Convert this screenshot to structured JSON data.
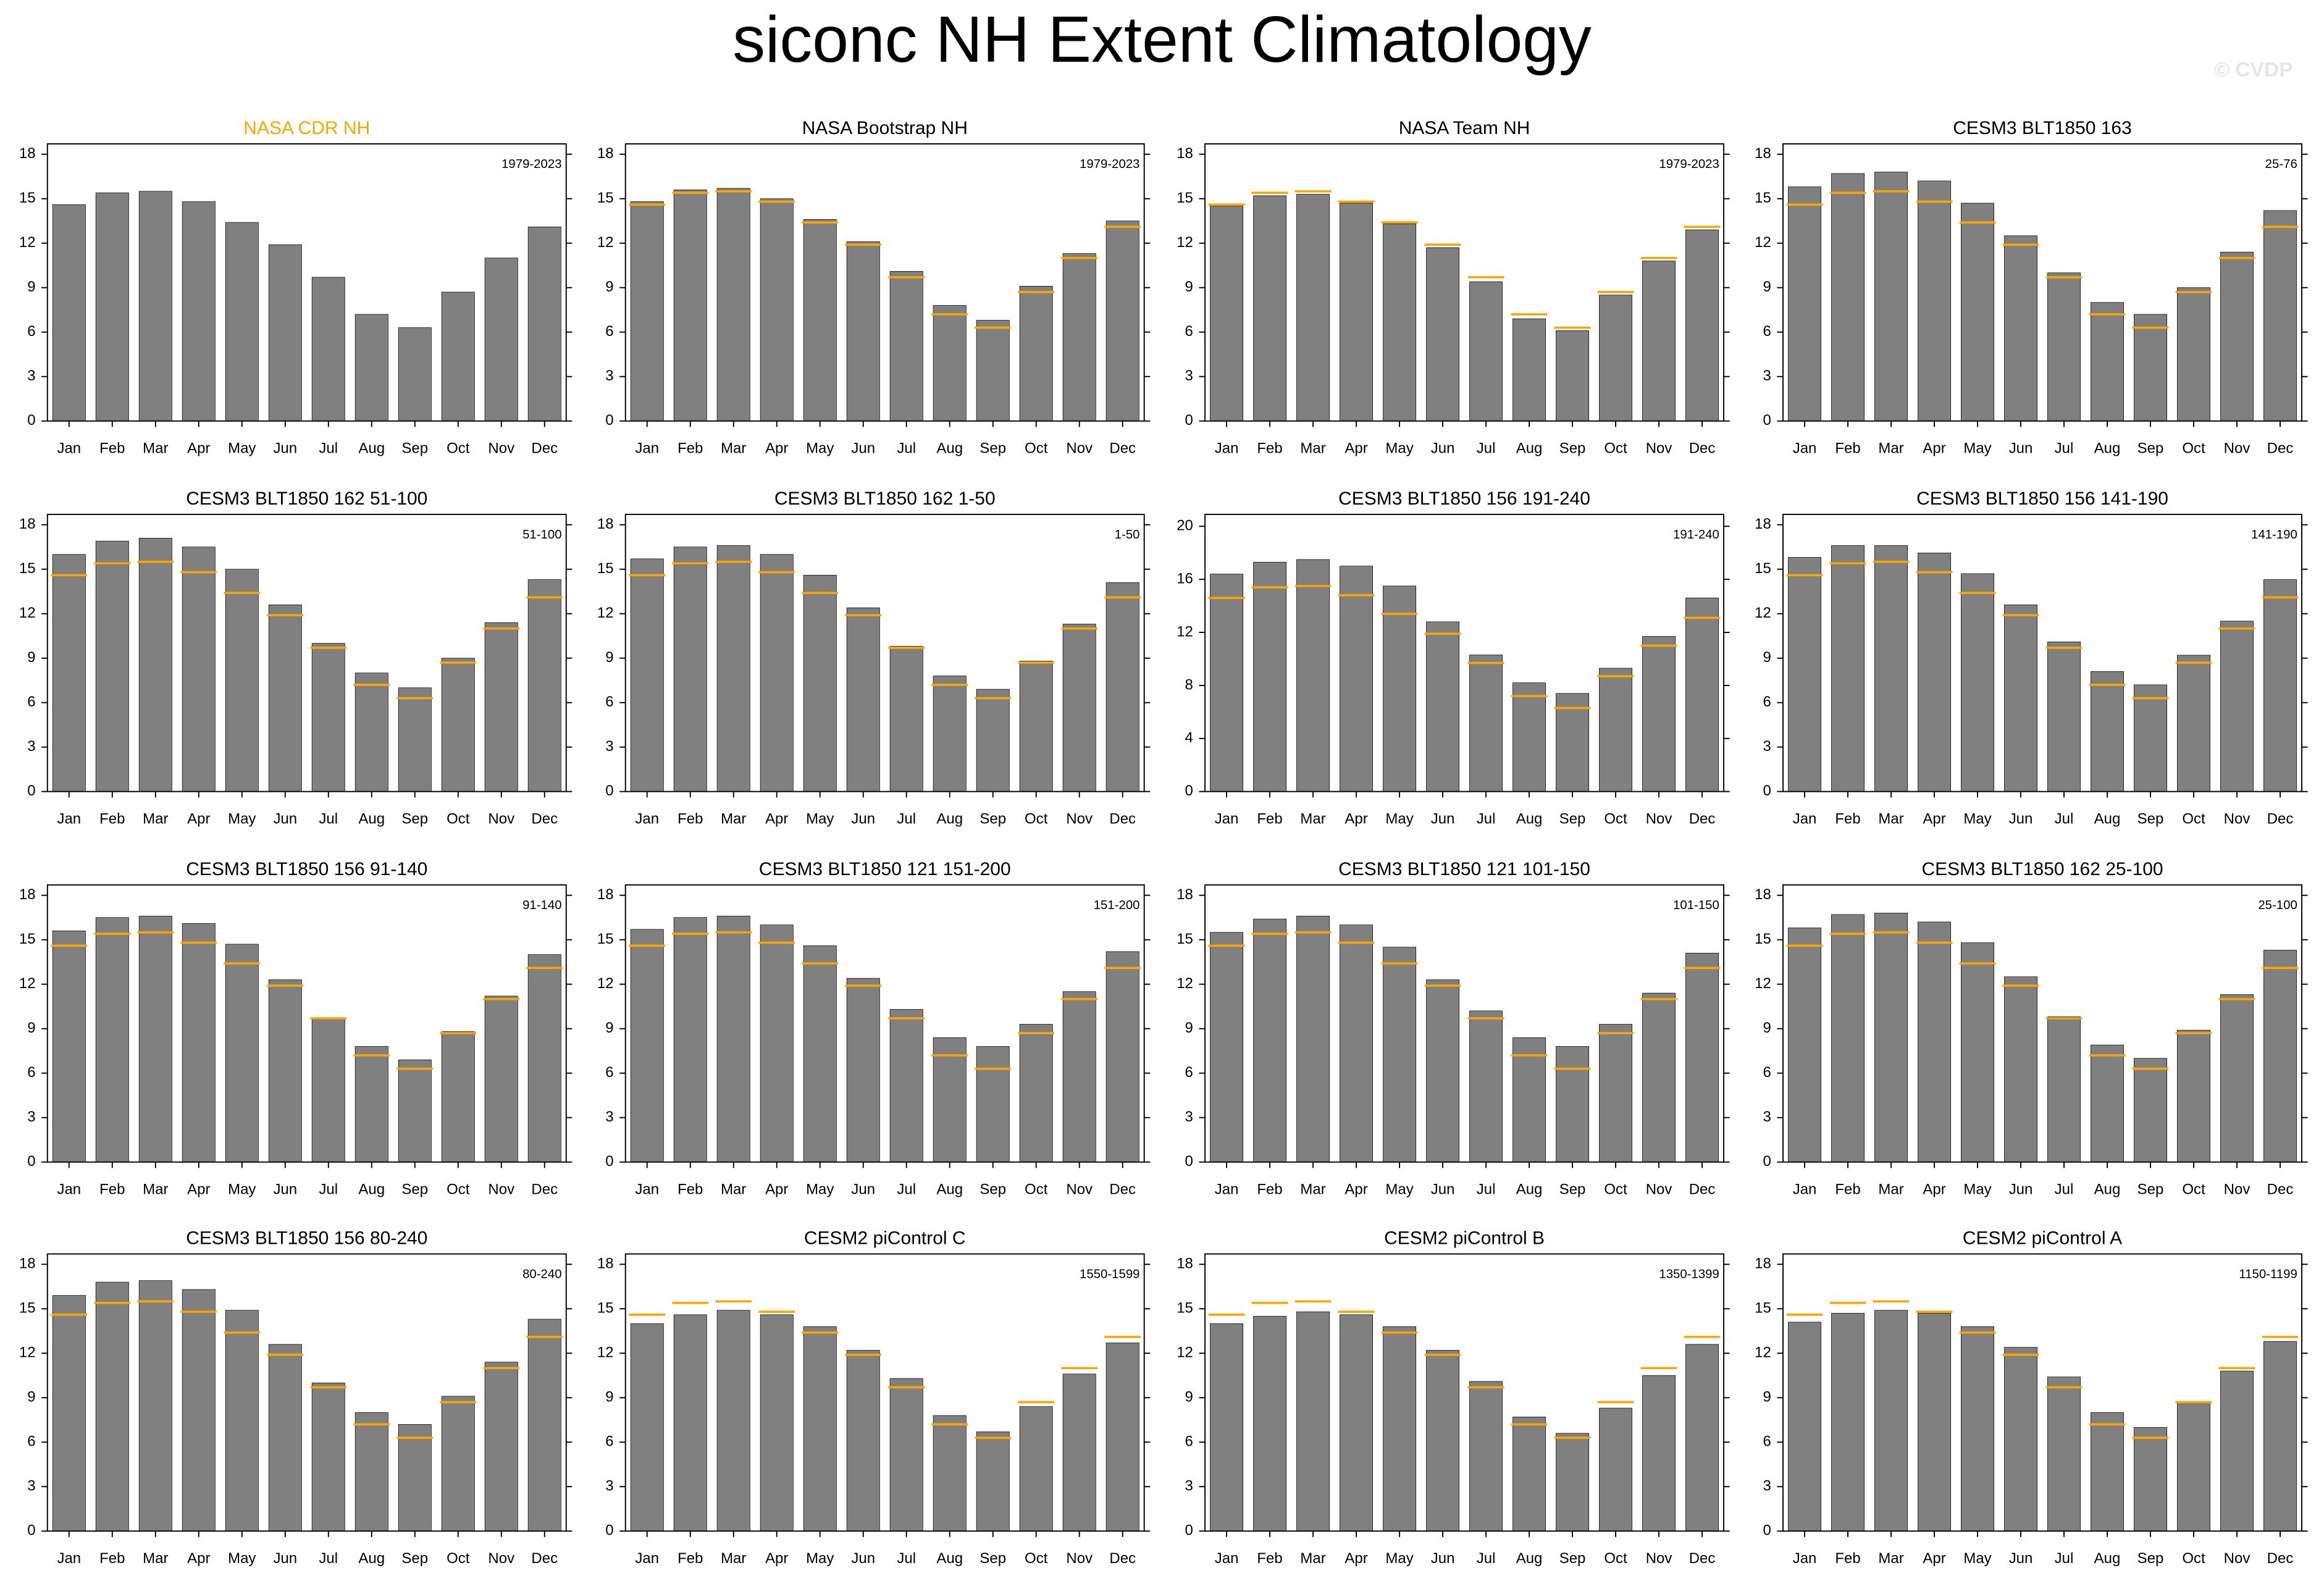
{
  "title": "siconc NH Extent Climatology",
  "watermark": "© CVDP",
  "chart_data": [
    {
      "type": "bar",
      "title": "NASA CDR NH",
      "title_color": "#ffa500",
      "annotation": "1979-2023",
      "categories": [
        "Jan",
        "Feb",
        "Mar",
        "Apr",
        "May",
        "Jun",
        "Jul",
        "Aug",
        "Sep",
        "Oct",
        "Nov",
        "Dec"
      ],
      "values": [
        14.6,
        15.4,
        15.5,
        14.8,
        13.4,
        11.9,
        9.7,
        7.2,
        6.3,
        8.7,
        11.0,
        13.1
      ],
      "color": "#808080",
      "ylim": [
        0,
        18.7
      ],
      "yticks": [
        0,
        3,
        6,
        9,
        12,
        15,
        18
      ]
    },
    {
      "type": "bar",
      "title": "NASA Bootstrap NH",
      "annotation": "1979-2023",
      "categories": [
        "Jan",
        "Feb",
        "Mar",
        "Apr",
        "May",
        "Jun",
        "Jul",
        "Aug",
        "Sep",
        "Oct",
        "Nov",
        "Dec"
      ],
      "values": [
        14.8,
        15.6,
        15.7,
        15.0,
        13.6,
        12.1,
        10.1,
        7.8,
        6.8,
        9.1,
        11.3,
        13.5
      ],
      "ref_values": [
        14.6,
        15.4,
        15.5,
        14.8,
        13.4,
        11.9,
        9.7,
        7.2,
        6.3,
        8.7,
        11.0,
        13.1
      ],
      "color": "#808080",
      "ref_color": "#ffa500",
      "ylim": [
        0,
        18.7
      ],
      "yticks": [
        0,
        3,
        6,
        9,
        12,
        15,
        18
      ]
    },
    {
      "type": "bar",
      "title": "NASA Team NH",
      "annotation": "1979-2023",
      "categories": [
        "Jan",
        "Feb",
        "Mar",
        "Apr",
        "May",
        "Jun",
        "Jul",
        "Aug",
        "Sep",
        "Oct",
        "Nov",
        "Dec"
      ],
      "values": [
        14.5,
        15.2,
        15.3,
        14.7,
        13.3,
        11.7,
        9.4,
        6.9,
        6.1,
        8.5,
        10.8,
        12.9
      ],
      "ref_values": [
        14.6,
        15.4,
        15.5,
        14.8,
        13.4,
        11.9,
        9.7,
        7.2,
        6.3,
        8.7,
        11.0,
        13.1
      ],
      "color": "#808080",
      "ref_color": "#ffa500",
      "ylim": [
        0,
        18.7
      ],
      "yticks": [
        0,
        3,
        6,
        9,
        12,
        15,
        18
      ]
    },
    {
      "type": "bar",
      "title": "CESM3 BLT1850 163",
      "annotation": "25-76",
      "categories": [
        "Jan",
        "Feb",
        "Mar",
        "Apr",
        "May",
        "Jun",
        "Jul",
        "Aug",
        "Sep",
        "Oct",
        "Nov",
        "Dec"
      ],
      "values": [
        15.8,
        16.7,
        16.8,
        16.2,
        14.7,
        12.5,
        10.0,
        8.0,
        7.2,
        9.0,
        11.4,
        14.2
      ],
      "ref_values": [
        14.6,
        15.4,
        15.5,
        14.8,
        13.4,
        11.9,
        9.7,
        7.2,
        6.3,
        8.7,
        11.0,
        13.1
      ],
      "color": "#808080",
      "ref_color": "#ffa500",
      "ylim": [
        0,
        18.7
      ],
      "yticks": [
        0,
        3,
        6,
        9,
        12,
        15,
        18
      ]
    },
    {
      "type": "bar",
      "title": "CESM3 BLT1850 162 51-100",
      "annotation": "51-100",
      "categories": [
        "Jan",
        "Feb",
        "Mar",
        "Apr",
        "May",
        "Jun",
        "Jul",
        "Aug",
        "Sep",
        "Oct",
        "Nov",
        "Dec"
      ],
      "values": [
        16.0,
        16.9,
        17.1,
        16.5,
        15.0,
        12.6,
        10.0,
        8.0,
        7.0,
        9.0,
        11.4,
        14.3
      ],
      "ref_values": [
        14.6,
        15.4,
        15.5,
        14.8,
        13.4,
        11.9,
        9.7,
        7.2,
        6.3,
        8.7,
        11.0,
        13.1
      ],
      "color": "#808080",
      "ref_color": "#ffa500",
      "ylim": [
        0,
        18.7
      ],
      "yticks": [
        0,
        3,
        6,
        9,
        12,
        15,
        18
      ]
    },
    {
      "type": "bar",
      "title": "CESM3 BLT1850 162 1-50",
      "annotation": "1-50",
      "categories": [
        "Jan",
        "Feb",
        "Mar",
        "Apr",
        "May",
        "Jun",
        "Jul",
        "Aug",
        "Sep",
        "Oct",
        "Nov",
        "Dec"
      ],
      "values": [
        15.7,
        16.5,
        16.6,
        16.0,
        14.6,
        12.4,
        9.8,
        7.8,
        6.9,
        8.8,
        11.3,
        14.1
      ],
      "ref_values": [
        14.6,
        15.4,
        15.5,
        14.8,
        13.4,
        11.9,
        9.7,
        7.2,
        6.3,
        8.7,
        11.0,
        13.1
      ],
      "color": "#808080",
      "ref_color": "#ffa500",
      "ylim": [
        0,
        18.7
      ],
      "yticks": [
        0,
        3,
        6,
        9,
        12,
        15,
        18
      ]
    },
    {
      "type": "bar",
      "title": "CESM3 BLT1850 156 191-240",
      "annotation": "191-240",
      "categories": [
        "Jan",
        "Feb",
        "Mar",
        "Apr",
        "May",
        "Jun",
        "Jul",
        "Aug",
        "Sep",
        "Oct",
        "Nov",
        "Dec"
      ],
      "values": [
        16.4,
        17.3,
        17.5,
        17.0,
        15.5,
        12.8,
        10.3,
        8.2,
        7.4,
        9.3,
        11.7,
        14.6
      ],
      "ref_values": [
        14.6,
        15.4,
        15.5,
        14.8,
        13.4,
        11.9,
        9.7,
        7.2,
        6.3,
        8.7,
        11.0,
        13.1
      ],
      "color": "#808080",
      "ref_color": "#ffa500",
      "ylim": [
        0,
        20.9
      ],
      "yticks": [
        0,
        4,
        8,
        12,
        16,
        20
      ]
    },
    {
      "type": "bar",
      "title": "CESM3 BLT1850 156 141-190",
      "annotation": "141-190",
      "categories": [
        "Jan",
        "Feb",
        "Mar",
        "Apr",
        "May",
        "Jun",
        "Jul",
        "Aug",
        "Sep",
        "Oct",
        "Nov",
        "Dec"
      ],
      "values": [
        15.8,
        16.6,
        16.6,
        16.1,
        14.7,
        12.6,
        10.1,
        8.1,
        7.2,
        9.2,
        11.5,
        14.3
      ],
      "ref_values": [
        14.6,
        15.4,
        15.5,
        14.8,
        13.4,
        11.9,
        9.7,
        7.2,
        6.3,
        8.7,
        11.0,
        13.1
      ],
      "color": "#808080",
      "ref_color": "#ffa500",
      "ylim": [
        0,
        18.7
      ],
      "yticks": [
        0,
        3,
        6,
        9,
        12,
        15,
        18
      ]
    },
    {
      "type": "bar",
      "title": "CESM3 BLT1850 156 91-140",
      "annotation": "91-140",
      "categories": [
        "Jan",
        "Feb",
        "Mar",
        "Apr",
        "May",
        "Jun",
        "Jul",
        "Aug",
        "Sep",
        "Oct",
        "Nov",
        "Dec"
      ],
      "values": [
        15.6,
        16.5,
        16.6,
        16.1,
        14.7,
        12.3,
        9.7,
        7.8,
        6.9,
        8.8,
        11.2,
        14.0
      ],
      "ref_values": [
        14.6,
        15.4,
        15.5,
        14.8,
        13.4,
        11.9,
        9.7,
        7.2,
        6.3,
        8.7,
        11.0,
        13.1
      ],
      "color": "#808080",
      "ref_color": "#ffa500",
      "ylim": [
        0,
        18.7
      ],
      "yticks": [
        0,
        3,
        6,
        9,
        12,
        15,
        18
      ]
    },
    {
      "type": "bar",
      "title": "CESM3 BLT1850 121 151-200",
      "annotation": "151-200",
      "categories": [
        "Jan",
        "Feb",
        "Mar",
        "Apr",
        "May",
        "Jun",
        "Jul",
        "Aug",
        "Sep",
        "Oct",
        "Nov",
        "Dec"
      ],
      "values": [
        15.7,
        16.5,
        16.6,
        16.0,
        14.6,
        12.4,
        10.3,
        8.4,
        7.8,
        9.3,
        11.5,
        14.2
      ],
      "ref_values": [
        14.6,
        15.4,
        15.5,
        14.8,
        13.4,
        11.9,
        9.7,
        7.2,
        6.3,
        8.7,
        11.0,
        13.1
      ],
      "color": "#808080",
      "ref_color": "#ffa500",
      "ylim": [
        0,
        18.7
      ],
      "yticks": [
        0,
        3,
        6,
        9,
        12,
        15,
        18
      ]
    },
    {
      "type": "bar",
      "title": "CESM3 BLT1850 121 101-150",
      "annotation": "101-150",
      "categories": [
        "Jan",
        "Feb",
        "Mar",
        "Apr",
        "May",
        "Jun",
        "Jul",
        "Aug",
        "Sep",
        "Oct",
        "Nov",
        "Dec"
      ],
      "values": [
        15.5,
        16.4,
        16.6,
        16.0,
        14.5,
        12.3,
        10.2,
        8.4,
        7.8,
        9.3,
        11.4,
        14.1
      ],
      "ref_values": [
        14.6,
        15.4,
        15.5,
        14.8,
        13.4,
        11.9,
        9.7,
        7.2,
        6.3,
        8.7,
        11.0,
        13.1
      ],
      "color": "#808080",
      "ref_color": "#ffa500",
      "ylim": [
        0,
        18.7
      ],
      "yticks": [
        0,
        3,
        6,
        9,
        12,
        15,
        18
      ]
    },
    {
      "type": "bar",
      "title": "CESM3 BLT1850 162 25-100",
      "annotation": "25-100",
      "categories": [
        "Jan",
        "Feb",
        "Mar",
        "Apr",
        "May",
        "Jun",
        "Jul",
        "Aug",
        "Sep",
        "Oct",
        "Nov",
        "Dec"
      ],
      "values": [
        15.8,
        16.7,
        16.8,
        16.2,
        14.8,
        12.5,
        9.8,
        7.9,
        7.0,
        8.9,
        11.3,
        14.3
      ],
      "ref_values": [
        14.6,
        15.4,
        15.5,
        14.8,
        13.4,
        11.9,
        9.7,
        7.2,
        6.3,
        8.7,
        11.0,
        13.1
      ],
      "color": "#808080",
      "ref_color": "#ffa500",
      "ylim": [
        0,
        18.7
      ],
      "yticks": [
        0,
        3,
        6,
        9,
        12,
        15,
        18
      ]
    },
    {
      "type": "bar",
      "title": "CESM3 BLT1850 156 80-240",
      "annotation": "80-240",
      "categories": [
        "Jan",
        "Feb",
        "Mar",
        "Apr",
        "May",
        "Jun",
        "Jul",
        "Aug",
        "Sep",
        "Oct",
        "Nov",
        "Dec"
      ],
      "values": [
        15.9,
        16.8,
        16.9,
        16.3,
        14.9,
        12.6,
        10.0,
        8.0,
        7.2,
        9.1,
        11.4,
        14.3
      ],
      "ref_values": [
        14.6,
        15.4,
        15.5,
        14.8,
        13.4,
        11.9,
        9.7,
        7.2,
        6.3,
        8.7,
        11.0,
        13.1
      ],
      "color": "#808080",
      "ref_color": "#ffa500",
      "ylim": [
        0,
        18.7
      ],
      "yticks": [
        0,
        3,
        6,
        9,
        12,
        15,
        18
      ]
    },
    {
      "type": "bar",
      "title": "CESM2 piControl C",
      "annotation": "1550-1599",
      "categories": [
        "Jan",
        "Feb",
        "Mar",
        "Apr",
        "May",
        "Jun",
        "Jul",
        "Aug",
        "Sep",
        "Oct",
        "Nov",
        "Dec"
      ],
      "values": [
        14.0,
        14.6,
        14.9,
        14.6,
        13.8,
        12.2,
        10.3,
        7.8,
        6.7,
        8.4,
        10.6,
        12.7
      ],
      "ref_values": [
        14.6,
        15.4,
        15.5,
        14.8,
        13.4,
        11.9,
        9.7,
        7.2,
        6.3,
        8.7,
        11.0,
        13.1
      ],
      "color": "#808080",
      "ref_color": "#ffa500",
      "ylim": [
        0,
        18.7
      ],
      "yticks": [
        0,
        3,
        6,
        9,
        12,
        15,
        18
      ]
    },
    {
      "type": "bar",
      "title": "CESM2 piControl B",
      "annotation": "1350-1399",
      "categories": [
        "Jan",
        "Feb",
        "Mar",
        "Apr",
        "May",
        "Jun",
        "Jul",
        "Aug",
        "Sep",
        "Oct",
        "Nov",
        "Dec"
      ],
      "values": [
        14.0,
        14.5,
        14.8,
        14.6,
        13.8,
        12.2,
        10.1,
        7.7,
        6.6,
        8.3,
        10.5,
        12.6
      ],
      "ref_values": [
        14.6,
        15.4,
        15.5,
        14.8,
        13.4,
        11.9,
        9.7,
        7.2,
        6.3,
        8.7,
        11.0,
        13.1
      ],
      "color": "#808080",
      "ref_color": "#ffa500",
      "ylim": [
        0,
        18.7
      ],
      "yticks": [
        0,
        3,
        6,
        9,
        12,
        15,
        18
      ]
    },
    {
      "type": "bar",
      "title": "CESM2 piControl A",
      "annotation": "1150-1199",
      "categories": [
        "Jan",
        "Feb",
        "Mar",
        "Apr",
        "May",
        "Jun",
        "Jul",
        "Aug",
        "Sep",
        "Oct",
        "Nov",
        "Dec"
      ],
      "values": [
        14.1,
        14.7,
        14.9,
        14.7,
        13.8,
        12.4,
        10.4,
        8.0,
        7.0,
        8.7,
        10.8,
        12.8
      ],
      "ref_values": [
        14.6,
        15.4,
        15.5,
        14.8,
        13.4,
        11.9,
        9.7,
        7.2,
        6.3,
        8.7,
        11.0,
        13.1
      ],
      "color": "#808080",
      "ref_color": "#ffa500",
      "ylim": [
        0,
        18.7
      ],
      "yticks": [
        0,
        3,
        6,
        9,
        12,
        15,
        18
      ]
    }
  ]
}
